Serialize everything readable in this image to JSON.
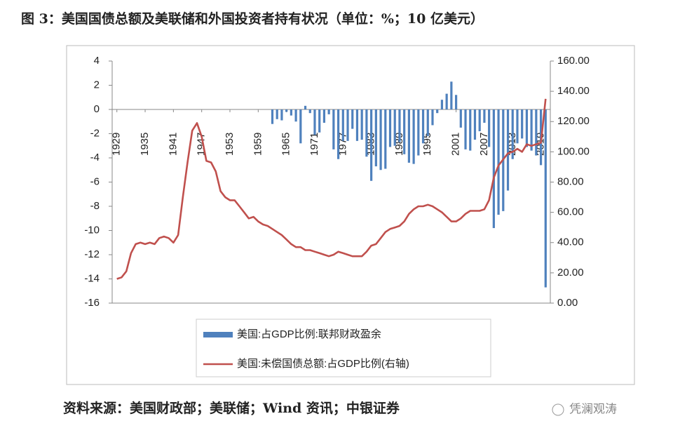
{
  "chart_data": {
    "type": "combo",
    "title": "图 3：美国国债总额及美联储和外国投资者持有状况（单位：%；10 亿美元）",
    "source": "资料来源：美国财政部；美联储；Wind 资讯；中银证券",
    "watermark": "凭澜观涛",
    "x": [
      1929,
      1930,
      1931,
      1932,
      1933,
      1934,
      1935,
      1936,
      1937,
      1938,
      1939,
      1940,
      1941,
      1942,
      1943,
      1944,
      1945,
      1946,
      1947,
      1948,
      1949,
      1950,
      1951,
      1952,
      1953,
      1954,
      1955,
      1956,
      1957,
      1958,
      1959,
      1960,
      1961,
      1962,
      1963,
      1964,
      1965,
      1966,
      1967,
      1968,
      1969,
      1970,
      1971,
      1972,
      1973,
      1974,
      1975,
      1976,
      1977,
      1978,
      1979,
      1980,
      1981,
      1982,
      1983,
      1984,
      1985,
      1986,
      1987,
      1988,
      1989,
      1990,
      1991,
      1992,
      1993,
      1994,
      1995,
      1996,
      1997,
      1998,
      1999,
      2000,
      2001,
      2002,
      2003,
      2004,
      2005,
      2006,
      2007,
      2008,
      2009,
      2010,
      2011,
      2012,
      2013,
      2014,
      2015,
      2016,
      2017,
      2018,
      2019,
      2020
    ],
    "xlim": [
      1928,
      2021
    ],
    "xticks": [
      1929,
      1935,
      1941,
      1947,
      1953,
      1959,
      1965,
      1971,
      1977,
      1983,
      1989,
      1995,
      2001,
      2007,
      2013,
      2019
    ],
    "ylim": [
      -16,
      4
    ],
    "yticks": [
      -16,
      -14,
      -12,
      -10,
      -8,
      -6,
      -4,
      -2,
      0,
      2,
      4
    ],
    "y2lim": [
      0,
      160
    ],
    "y2ticks": [
      {
        "value": 0,
        "label": "0.00"
      },
      {
        "value": 20,
        "label": "20.00"
      },
      {
        "value": 40,
        "label": "40.00"
      },
      {
        "value": 60,
        "label": "60.00"
      },
      {
        "value": 80,
        "label": "80.00"
      },
      {
        "value": 100,
        "label": "100.00"
      },
      {
        "value": 120,
        "label": "120.00"
      },
      {
        "value": 140,
        "label": "140.00"
      },
      {
        "value": 160,
        "label": "160.00"
      }
    ],
    "grid": false,
    "series": [
      {
        "name": "美国:占GDP比例:联邦财政盈余",
        "type": "bar",
        "color": "#4f81bd",
        "values": [
          null,
          null,
          null,
          null,
          null,
          null,
          null,
          null,
          null,
          null,
          null,
          null,
          null,
          null,
          null,
          null,
          null,
          null,
          null,
          null,
          null,
          null,
          null,
          null,
          null,
          null,
          null,
          null,
          null,
          null,
          null,
          null,
          null,
          -1.2,
          -0.8,
          -0.9,
          -0.2,
          -0.5,
          -1.0,
          -2.8,
          0.3,
          -0.3,
          -2.1,
          -1.9,
          -1.1,
          -0.4,
          -3.3,
          -4.1,
          -2.6,
          -2.6,
          -1.6,
          -2.6,
          -2.5,
          -3.9,
          -5.9,
          -4.7,
          -5.0,
          -4.9,
          -3.1,
          -3.0,
          -2.7,
          -3.7,
          -4.4,
          -4.5,
          -3.8,
          -2.8,
          -2.2,
          -1.3,
          -0.3,
          0.8,
          1.3,
          2.3,
          1.2,
          -1.5,
          -3.3,
          -3.4,
          -2.5,
          -1.8,
          -1.1,
          -3.1,
          -9.8,
          -8.7,
          -8.4,
          -6.7,
          -4.1,
          -2.8,
          -2.4,
          -3.1,
          -3.4,
          -3.8,
          -4.6,
          -14.7
        ]
      },
      {
        "name": "美国:未偿国债总额:占GDP比例(右轴)",
        "type": "line",
        "axis": "y2",
        "color": "#c0504d",
        "values": [
          16,
          17,
          21,
          33,
          39,
          40,
          39,
          40,
          39,
          43,
          44,
          43,
          40,
          45,
          70,
          93,
          114,
          119,
          110,
          94,
          93,
          87,
          74,
          70,
          68,
          68,
          64,
          60,
          56,
          57,
          54,
          52,
          51,
          49,
          47,
          45,
          42,
          39,
          37,
          37,
          35,
          35,
          34,
          33,
          32,
          31,
          32,
          34,
          33,
          32,
          31,
          31,
          31,
          34,
          38,
          39,
          43,
          47,
          49,
          50,
          51,
          54,
          59,
          62,
          64,
          64,
          65,
          64,
          62,
          60,
          57,
          54,
          54,
          56,
          59,
          61,
          61,
          61,
          62,
          68,
          83,
          91,
          95,
          99,
          100,
          102,
          100,
          105,
          104,
          105,
          106,
          135
        ]
      }
    ],
    "legend": "bottom"
  }
}
